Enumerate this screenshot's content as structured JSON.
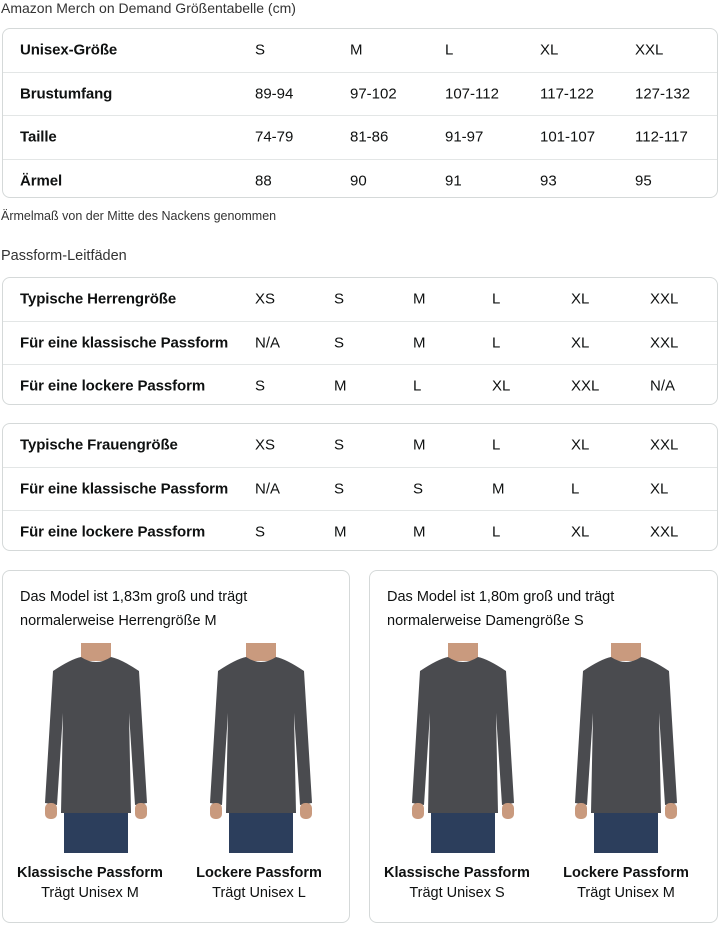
{
  "title": "Amazon Merch on Demand Größentabelle (cm)",
  "size_table": {
    "rows": [
      [
        "Unisex-Größe",
        "S",
        "M",
        "L",
        "XL",
        "XXL"
      ],
      [
        "Brustumfang",
        "89-94",
        "97-102",
        "107-112",
        "117-122",
        "127-132"
      ],
      [
        "Taille",
        "74-79",
        "81-86",
        "91-97",
        "101-107",
        "112-117"
      ],
      [
        "Ärmel",
        "88",
        "90",
        "91",
        "93",
        "95"
      ]
    ]
  },
  "note": "Ärmelmaß von der Mitte des Nackens genommen",
  "fit_title": "Passform-Leitfäden",
  "men_table": {
    "rows": [
      [
        "Typische Herrengröße",
        "XS",
        "S",
        "M",
        "L",
        "XL",
        "XXL"
      ],
      [
        "Für eine klassische Passform",
        "N/A",
        "S",
        "M",
        "L",
        "XL",
        "XXL"
      ],
      [
        "Für eine lockere Passform",
        "S",
        "M",
        "L",
        "XL",
        "XXL",
        "N/A"
      ]
    ]
  },
  "women_table": {
    "rows": [
      [
        "Typische Frauengröße",
        "XS",
        "S",
        "M",
        "L",
        "XL",
        "XXL"
      ],
      [
        "Für eine klassische Passform",
        "N/A",
        "S",
        "S",
        "M",
        "L",
        "XL"
      ],
      [
        "Für eine lockere Passform",
        "S",
        "M",
        "M",
        "L",
        "XL",
        "XXL"
      ]
    ]
  },
  "cards": [
    {
      "desc": "Das Model ist 1,83m groß und trägt normalerweise Herrengröße M",
      "items": [
        {
          "fit": "Klassische Passform",
          "wears": "Trägt Unisex M"
        },
        {
          "fit": "Lockere Passform",
          "wears": "Trägt Unisex L"
        }
      ]
    },
    {
      "desc": "Das Model ist 1,80m groß und trägt normalerweise Damengröße S",
      "items": [
        {
          "fit": "Klassische Passform",
          "wears": "Trägt Unisex S"
        },
        {
          "fit": "Lockere Passform",
          "wears": "Trägt Unisex M"
        }
      ]
    }
  ],
  "colors": {
    "shirt": "#4a4b4f",
    "jeans": "#2c3e5c",
    "skin": "#c99a7e",
    "border": "#d5d9d9"
  }
}
